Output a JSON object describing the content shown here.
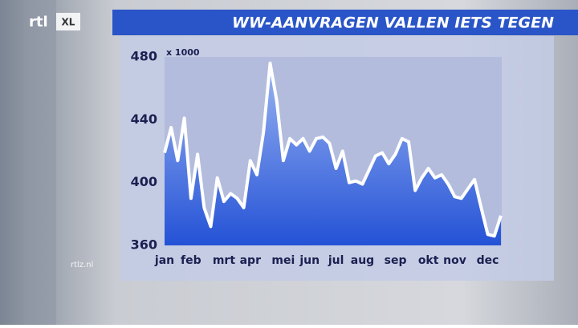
{
  "branding": {
    "logo": "rtl",
    "logo_suffix": "XL",
    "site": "rtlz.nl"
  },
  "chart_data": {
    "type": "area_line",
    "title": "WW-AANVRAGEN VALLEN IETS TEGEN",
    "unit_label": "x 1000",
    "categories": [
      "jan",
      null,
      null,
      null,
      "feb",
      null,
      null,
      null,
      null,
      "mrt",
      null,
      null,
      null,
      "apr",
      null,
      null,
      null,
      null,
      "mei",
      null,
      null,
      null,
      "jun",
      null,
      null,
      null,
      "jul",
      null,
      null,
      null,
      "aug",
      null,
      null,
      null,
      null,
      "sep",
      null,
      null,
      null,
      null,
      "okt",
      null,
      null,
      null,
      "nov",
      null,
      null,
      null,
      null,
      "dec",
      null,
      null
    ],
    "values": [
      419,
      435,
      414,
      441,
      390,
      418,
      384,
      372,
      403,
      388,
      393,
      390,
      384,
      414,
      405,
      432,
      476,
      452,
      414,
      428,
      424,
      428,
      420,
      428,
      429,
      425,
      409,
      420,
      400,
      401,
      399,
      408,
      417,
      419,
      412,
      418,
      428,
      426,
      395,
      403,
      409,
      403,
      405,
      399,
      391,
      390,
      396,
      402,
      384,
      367,
      366,
      379
    ],
    "ylim": [
      360,
      480
    ],
    "yticks": [
      360,
      400,
      440,
      480
    ],
    "line_color": "#ffffff",
    "fill_top": "#9ab4f2",
    "fill_bottom": "#2452d6",
    "grid": false
  }
}
